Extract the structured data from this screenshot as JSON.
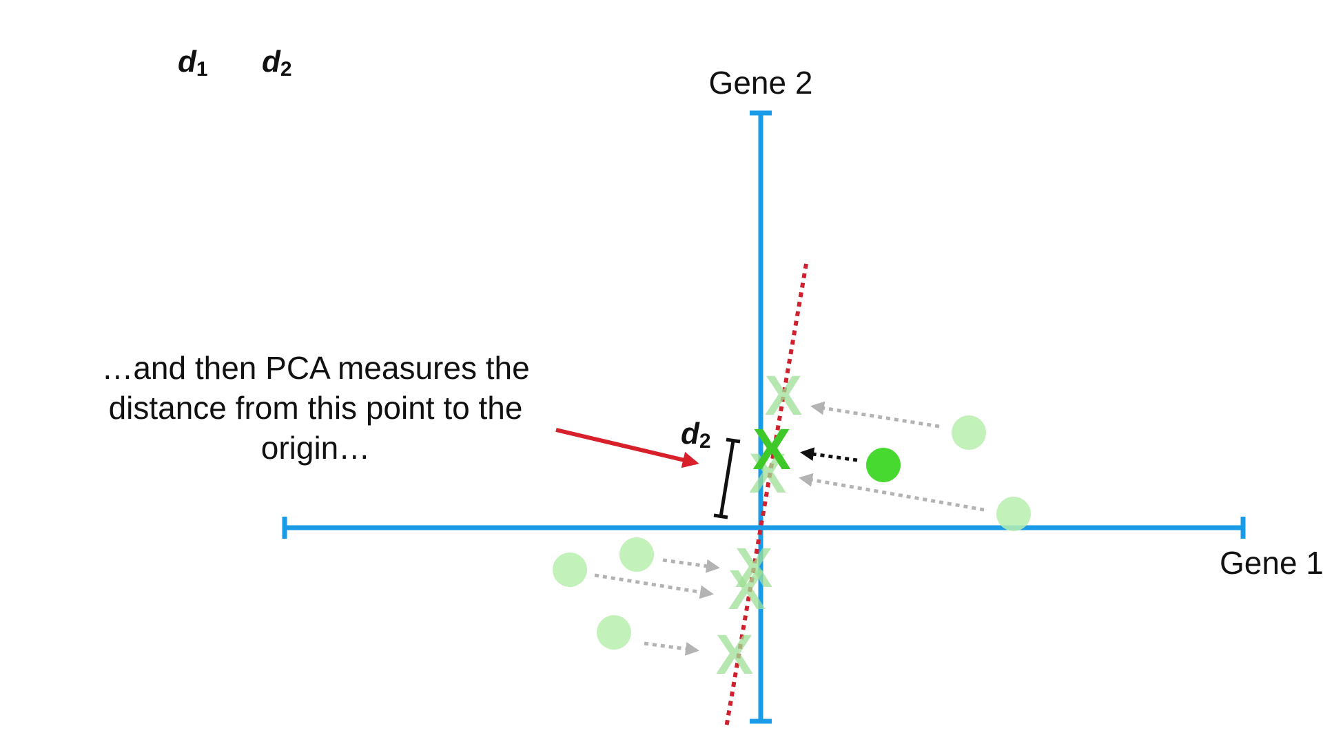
{
  "legend": {
    "d1_main": "d",
    "d1_sub": "1",
    "d2_main": "d",
    "d2_sub": "2"
  },
  "axes": {
    "gene2_label": "Gene 2",
    "gene1_label": "Gene 1"
  },
  "caption": {
    "lines": [
      "…and then PCA measures the",
      "distance from this point to the",
      "origin…"
    ]
  },
  "measurement": {
    "label_main": "d",
    "label_sub": "2"
  },
  "marker": {
    "symbol": "X"
  },
  "colors": {
    "axis": "#1a9be8",
    "pc_line": "#d0202e",
    "highlight_point": "#47d92f",
    "faded_point": "#b9efae",
    "faded_x": "#9fe096",
    "arrow_faded": "#b3b3b3",
    "arrow_active": "#111111",
    "annotation_arrow": "#d8202a"
  }
}
